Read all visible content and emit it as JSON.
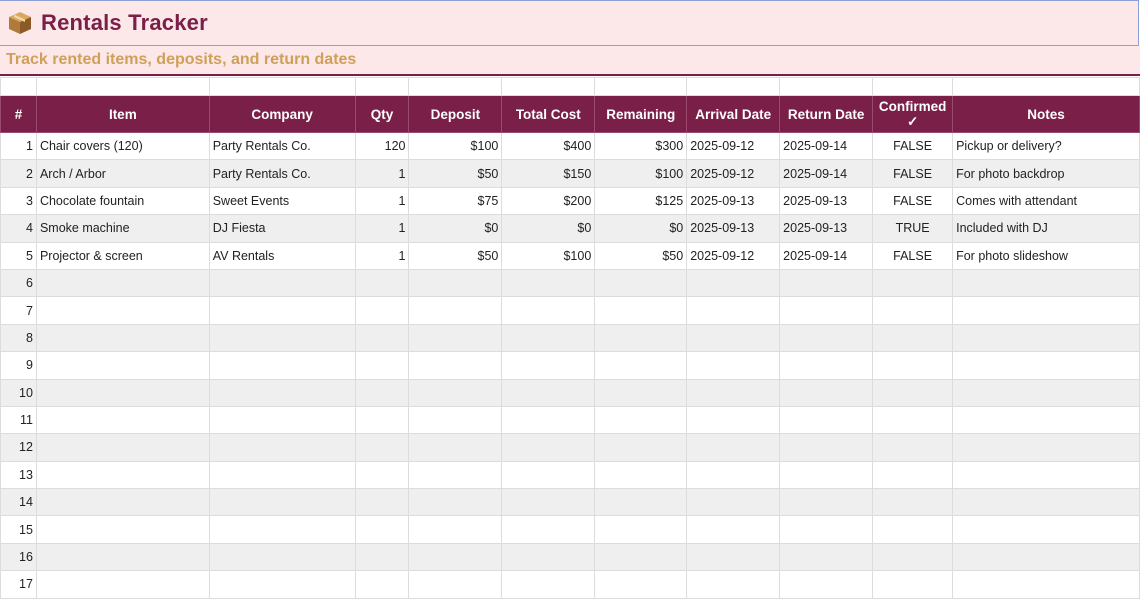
{
  "header": {
    "icon": "package-icon",
    "title": "Rentals Tracker",
    "subtitle": "Track rented items, deposits, and return dates"
  },
  "colors": {
    "header_bg": "#7a2048",
    "title_color": "#7a2048",
    "subtitle_color": "#d0a05a",
    "banner_bg": "#fce8e8"
  },
  "table": {
    "columns": [
      "#",
      "Item",
      "Company",
      "Qty",
      "Deposit",
      "Total Cost",
      "Remaining",
      "Arrival Date",
      "Return Date",
      "Confirmed ✓",
      "Notes"
    ],
    "rows": [
      [
        "1",
        "Chair covers (120)",
        "Party Rentals Co.",
        "120",
        "$100",
        "$400",
        "$300",
        "2025-09-12",
        "2025-09-14",
        "FALSE",
        "Pickup or delivery?"
      ],
      [
        "2",
        "Arch / Arbor",
        "Party Rentals Co.",
        "1",
        "$50",
        "$150",
        "$100",
        "2025-09-12",
        "2025-09-14",
        "FALSE",
        "For photo backdrop"
      ],
      [
        "3",
        "Chocolate fountain",
        "Sweet Events",
        "1",
        "$75",
        "$200",
        "$125",
        "2025-09-13",
        "2025-09-13",
        "FALSE",
        "Comes with attendant"
      ],
      [
        "4",
        "Smoke machine",
        "DJ Fiesta",
        "1",
        "$0",
        "$0",
        "$0",
        "2025-09-13",
        "2025-09-13",
        "TRUE",
        "Included with DJ"
      ],
      [
        "5",
        "Projector & screen",
        "AV Rentals",
        "1",
        "$50",
        "$100",
        "$50",
        "2025-09-12",
        "2025-09-14",
        "FALSE",
        "For photo slideshow"
      ],
      [
        "6",
        "",
        "",
        "",
        "",
        "",
        "",
        "",
        "",
        "",
        ""
      ],
      [
        "7",
        "",
        "",
        "",
        "",
        "",
        "",
        "",
        "",
        "",
        ""
      ],
      [
        "8",
        "",
        "",
        "",
        "",
        "",
        "",
        "",
        "",
        "",
        ""
      ],
      [
        "9",
        "",
        "",
        "",
        "",
        "",
        "",
        "",
        "",
        "",
        ""
      ],
      [
        "10",
        "",
        "",
        "",
        "",
        "",
        "",
        "",
        "",
        "",
        ""
      ],
      [
        "11",
        "",
        "",
        "",
        "",
        "",
        "",
        "",
        "",
        "",
        ""
      ],
      [
        "12",
        "",
        "",
        "",
        "",
        "",
        "",
        "",
        "",
        "",
        ""
      ],
      [
        "13",
        "",
        "",
        "",
        "",
        "",
        "",
        "",
        "",
        "",
        ""
      ],
      [
        "14",
        "",
        "",
        "",
        "",
        "",
        "",
        "",
        "",
        "",
        ""
      ],
      [
        "15",
        "",
        "",
        "",
        "",
        "",
        "",
        "",
        "",
        "",
        ""
      ],
      [
        "16",
        "",
        "",
        "",
        "",
        "",
        "",
        "",
        "",
        "",
        ""
      ],
      [
        "17",
        "",
        "",
        "",
        "",
        "",
        "",
        "",
        "",
        "",
        ""
      ]
    ]
  }
}
